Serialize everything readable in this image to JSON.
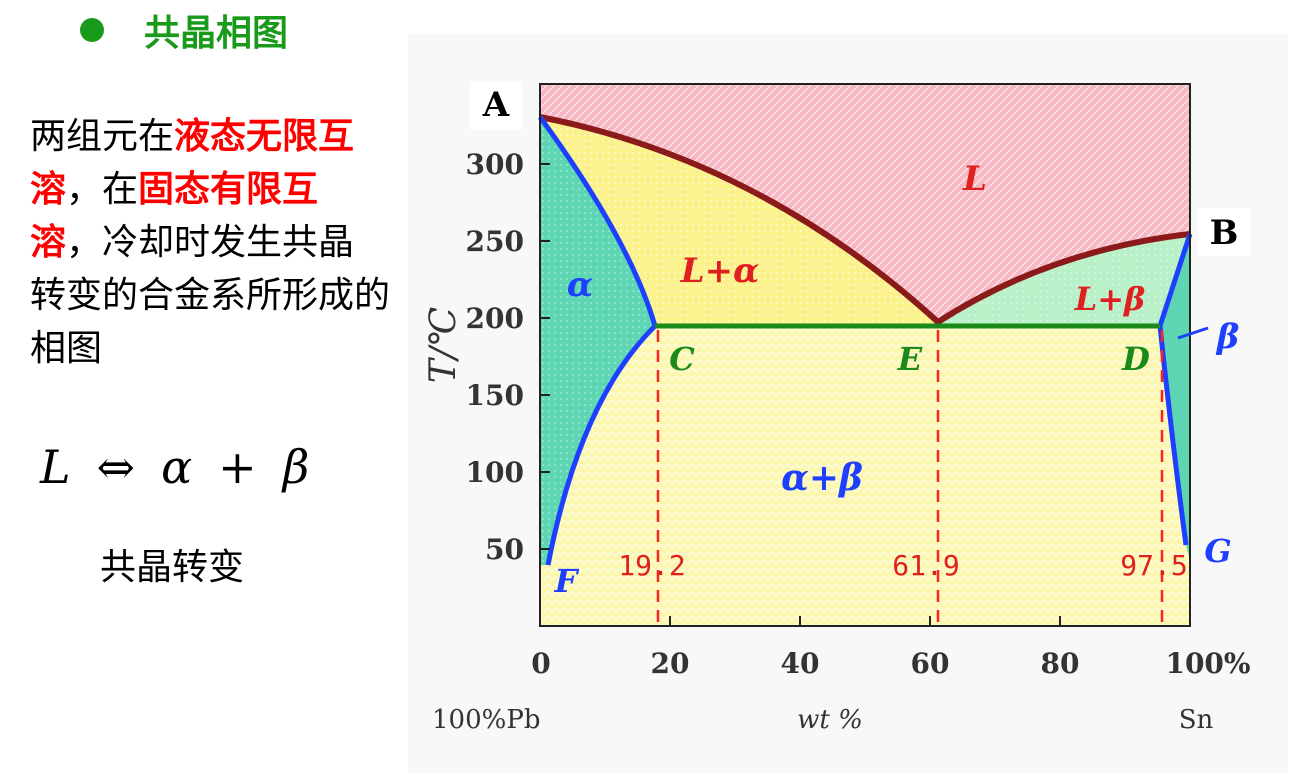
{
  "heading": "共晶相图",
  "description": {
    "p1": "两组元在",
    "p2": "液态无限互溶",
    "p3": "，在",
    "p4": "固态有限互溶",
    "p5": "，冷却时发生共晶转变的合金系所形成的相图"
  },
  "equation": {
    "lhs": "L",
    "arrow": "⇔",
    "a": "α",
    "plus": "+",
    "b": "β"
  },
  "caption": "共晶转变",
  "diagram": {
    "point_A": "A",
    "point_B": "B",
    "y_label": "T/℃",
    "y_ticks": [
      "300",
      "250",
      "200",
      "150",
      "100",
      "50"
    ],
    "x_ticks": [
      "0",
      "20",
      "40",
      "60",
      "80",
      "100%"
    ],
    "x_left": "100%Pb",
    "x_mid": "wt %",
    "x_right": "Sn",
    "region_L": "L",
    "region_L_alpha": "L+α",
    "region_L_beta": "L+β",
    "region_alpha": "α",
    "region_beta": "β",
    "region_alpha_beta": "α+β",
    "point_C": "C",
    "point_E": "E",
    "point_D": "D",
    "point_F": "F",
    "point_G": "G",
    "comp_C": "19.2",
    "comp_E": "61.9",
    "comp_D": "97.5",
    "colors": {
      "liquid": "#f7b8c4",
      "two_phase": "#fbf28c",
      "alpha": "#5ed6b4",
      "beta_liquid": "#b8f0c8",
      "solid_mix": "#fbf7b0",
      "liquidus": "#8b1a1a",
      "solvus": "#1f3fff",
      "eutectic": "#1a8a1a",
      "dash": "#ff2020"
    }
  }
}
